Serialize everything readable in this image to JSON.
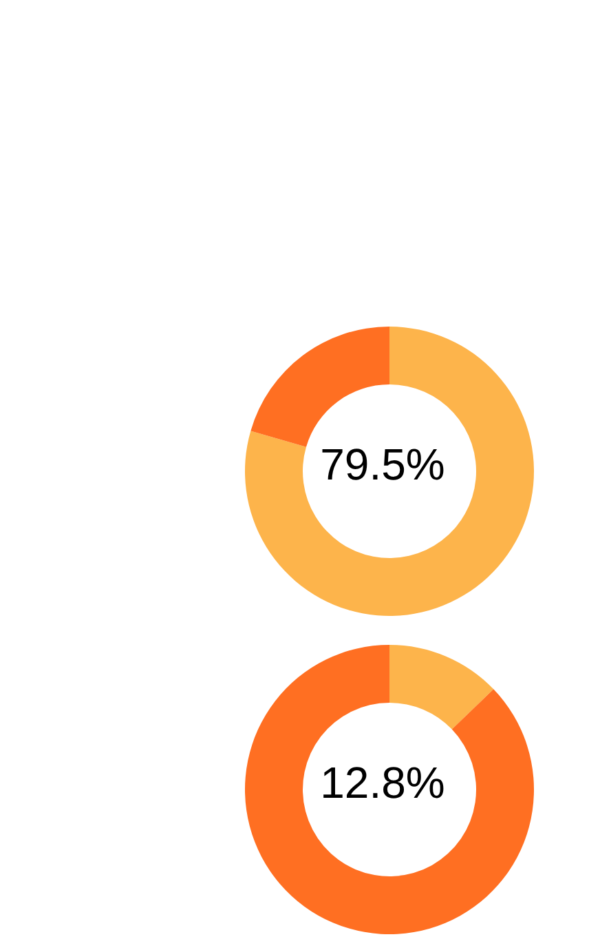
{
  "chart_data": [
    {
      "type": "donut",
      "categories": [
        null,
        null
      ],
      "values": [
        79.5,
        20.5
      ],
      "colors": [
        "#fdb44b",
        "#ff6f22"
      ],
      "annotations": [
        "79.5%"
      ]
    },
    {
      "type": "donut",
      "categories": [
        null,
        null
      ],
      "values": [
        12.8,
        87.2
      ],
      "colors": [
        "#fdb44b",
        "#ff6f22"
      ],
      "annotations": [
        "12.8%"
      ]
    }
  ]
}
